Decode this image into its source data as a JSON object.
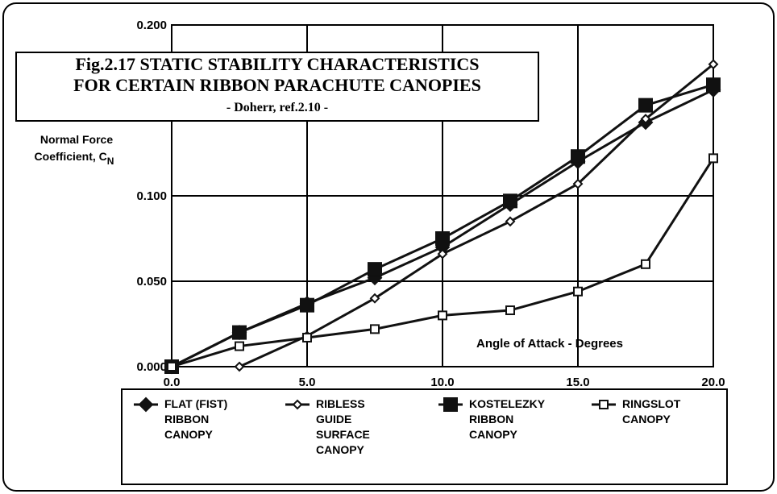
{
  "chart_data": {
    "type": "line",
    "title": [
      "Fig.2.17 STATIC STABILITY CHARACTERISTICS",
      "FOR CERTAIN RIBBON PARACHUTE CANOPIES"
    ],
    "subtitle": "- Doherr, ref.2.10 -",
    "y_label": [
      "Normal Force",
      "Coefficient, C"
    ],
    "y_label_subscript": "N",
    "x_label": "Angle of Attack - Degrees",
    "x": [
      0,
      2.5,
      5,
      7.5,
      10,
      12.5,
      15,
      17.5,
      20
    ],
    "xlim": [
      0,
      20
    ],
    "xticks": [
      {
        "value": 0,
        "label": "0.0"
      },
      {
        "value": 5,
        "label": "5.0"
      },
      {
        "value": 10,
        "label": "10.0"
      },
      {
        "value": 15,
        "label": "15.0"
      },
      {
        "value": 20,
        "label": "20.0"
      }
    ],
    "ylim": [
      0,
      0.2
    ],
    "yticks": [
      {
        "value": 0,
        "label": "0.000"
      },
      {
        "value": 0.05,
        "label": "0.050"
      },
      {
        "value": 0.1,
        "label": "0.100"
      },
      {
        "value": 0.2,
        "label": "0.200"
      }
    ],
    "grid": true,
    "series": [
      {
        "name": "FLAT (FIST) RIBBON CANOPY",
        "color": "#111111",
        "marker": "diamond-filled",
        "values": [
          0,
          0.02,
          0.037,
          0.052,
          0.07,
          0.095,
          0.12,
          0.143,
          0.162
        ]
      },
      {
        "name": "RIBLESS GUIDE SURFACE CANOPY",
        "color": "#111111",
        "marker": "diamond-open",
        "values": [
          null,
          0,
          0.018,
          0.04,
          0.066,
          0.085,
          0.107,
          0.145,
          0.177
        ]
      },
      {
        "name": "KOSTELEZKY RIBBON CANOPY",
        "color": "#111111",
        "marker": "square-filled",
        "values": [
          0,
          0.02,
          0.036,
          0.057,
          0.075,
          0.097,
          0.123,
          0.153,
          0.165
        ]
      },
      {
        "name": "RINGSLOT CANOPY",
        "color": "#111111",
        "marker": "square-open",
        "values": [
          0,
          0.012,
          0.017,
          0.022,
          0.03,
          0.033,
          0.044,
          0.06,
          0.122
        ]
      }
    ]
  }
}
